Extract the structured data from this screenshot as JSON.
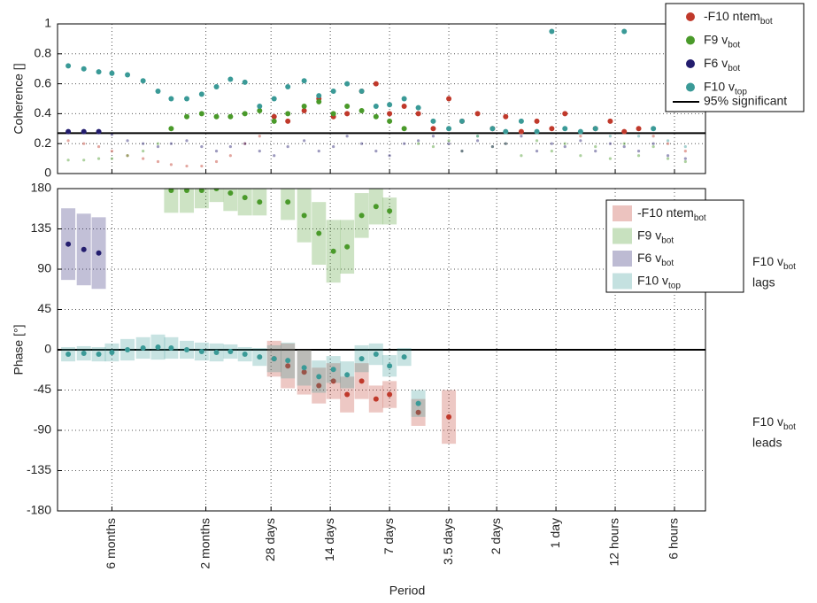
{
  "chart_data": [
    {
      "type": "scatter",
      "ylabel": "Coherence []",
      "xlog": true,
      "xlim": [
        340,
        0.174
      ],
      "ylim": [
        0,
        1
      ],
      "xticks": [
        180,
        60,
        28,
        14,
        7,
        3.5,
        2,
        1,
        0.5,
        0.25
      ],
      "yticks": [
        0,
        0.2,
        0.4,
        0.6,
        0.8,
        1
      ],
      "grid": true,
      "threshold": {
        "value": 0.27,
        "label": "95% significant"
      },
      "x": [
        300,
        250,
        210,
        180,
        150,
        125,
        105,
        90,
        75,
        63,
        53,
        45,
        38,
        32,
        27,
        23,
        19,
        16,
        13.5,
        11.5,
        9.7,
        8.2,
        7,
        5.9,
        5,
        4.2,
        3.5,
        3,
        2.5,
        2.1,
        1.8,
        1.5,
        1.25,
        1.05,
        0.9,
        0.75,
        0.63,
        0.53,
        0.45,
        0.38,
        0.32,
        0.27,
        0.22
      ],
      "series": [
        {
          "name": "-F10 ntem",
          "name_sub": "bot",
          "color": "#c0392b",
          "values": [
            0.22,
            0.2,
            0.18,
            0.15,
            0.12,
            0.1,
            0.08,
            0.06,
            0.05,
            0.05,
            0.08,
            0.12,
            0.2,
            0.25,
            0.38,
            0.35,
            0.42,
            0.5,
            0.38,
            0.4,
            0.55,
            0.6,
            0.4,
            0.45,
            0.4,
            0.3,
            0.5,
            0.35,
            0.4,
            0.3,
            0.38,
            0.28,
            0.35,
            0.3,
            0.4,
            0.25,
            0.3,
            0.35,
            0.28,
            0.3,
            0.25,
            0.2,
            0.15
          ]
        },
        {
          "name": "F9 v",
          "name_sub": "bot",
          "color": "#4a9a2a",
          "values": [
            0.09,
            0.09,
            0.1,
            0.1,
            0.12,
            0.15,
            0.2,
            0.3,
            0.38,
            0.4,
            0.38,
            0.38,
            0.4,
            0.42,
            0.35,
            0.4,
            0.45,
            0.48,
            0.4,
            0.45,
            0.42,
            0.38,
            0.35,
            0.3,
            0.2,
            0.18,
            0.22,
            0.15,
            0.25,
            0.18,
            0.2,
            0.12,
            0.22,
            0.15,
            0.2,
            0.12,
            0.18,
            0.1,
            0.2,
            0.12,
            0.18,
            0.1,
            0.08
          ]
        },
        {
          "name": "F6 v",
          "name_sub": "bot",
          "color": "#231d6e",
          "values": [
            0.28,
            0.28,
            0.28,
            0.26,
            0.22,
            0.2,
            0.18,
            0.2,
            0.22,
            0.18,
            0.15,
            0.18,
            0.2,
            0.15,
            0.12,
            0.18,
            0.22,
            0.15,
            0.18,
            0.25,
            0.2,
            0.15,
            0.12,
            0.2,
            0.22,
            0.25,
            0.2,
            0.15,
            0.22,
            0.18,
            0.2,
            0.25,
            0.15,
            0.2,
            0.18,
            0.22,
            0.15,
            0.2,
            0.18,
            0.15,
            0.2,
            0.12,
            0.1
          ]
        },
        {
          "name": "F10 v",
          "name_sub": "top",
          "color": "#3a9a97",
          "values": [
            0.72,
            0.7,
            0.68,
            0.67,
            0.66,
            0.62,
            0.55,
            0.5,
            0.5,
            0.53,
            0.58,
            0.63,
            0.61,
            0.45,
            0.5,
            0.58,
            0.62,
            0.52,
            0.55,
            0.6,
            0.55,
            0.45,
            0.46,
            0.5,
            0.44,
            0.35,
            0.3,
            0.35,
            0.25,
            0.3,
            0.28,
            0.35,
            0.28,
            0.95,
            0.3,
            0.28,
            0.3,
            0.25,
            0.95,
            0.25,
            0.3,
            0.22,
            0.18
          ]
        }
      ]
    },
    {
      "type": "scatter",
      "ylabel": "Phase [°]",
      "xlabel": "Period",
      "xlog": true,
      "xlim": [
        340,
        0.174
      ],
      "ylim": [
        -180,
        180
      ],
      "xticks": [
        {
          "value": 180,
          "label": "6 months"
        },
        {
          "value": 60,
          "label": "2 months"
        },
        {
          "value": 28,
          "label": "28 days"
        },
        {
          "value": 14,
          "label": "14 days"
        },
        {
          "value": 7,
          "label": "7 days"
        },
        {
          "value": 3.5,
          "label": "3.5 days"
        },
        {
          "value": 2,
          "label": "2 days"
        },
        {
          "value": 1,
          "label": "1 day"
        },
        {
          "value": 0.5,
          "label": "12 hours"
        },
        {
          "value": 0.25,
          "label": "6 hours"
        }
      ],
      "yticks": [
        -180,
        -135,
        -90,
        -45,
        0,
        45,
        90,
        135,
        180
      ],
      "grid": true,
      "reference_line": 0,
      "annotations": [
        {
          "text": "F10 v",
          "sub": "bot",
          "line2": "lags"
        },
        {
          "text": "F10 v",
          "sub": "bot",
          "line2": "leads"
        }
      ],
      "x": [
        300,
        250,
        210,
        180,
        150,
        125,
        105,
        90,
        75,
        63,
        53,
        45,
        38,
        32,
        27,
        23,
        19,
        16,
        13.5,
        11.5,
        9.7,
        8.2,
        7,
        5.9,
        5,
        4.2,
        3.5,
        3,
        2.5,
        2.1,
        1.8,
        1.5,
        1.25,
        1.05,
        0.9,
        0.75,
        0.63,
        0.53,
        0.45,
        0.38,
        0.32,
        0.27,
        0.22
      ],
      "series": [
        {
          "name": "-F10 ntem",
          "name_sub": "bot",
          "color": "#c0392b",
          "values": [
            null,
            null,
            null,
            null,
            null,
            null,
            null,
            null,
            null,
            null,
            null,
            null,
            null,
            null,
            -10,
            -18,
            -25,
            -40,
            -35,
            -50,
            -35,
            -55,
            -50,
            null,
            -70,
            null,
            -75,
            null,
            null,
            null,
            null,
            null,
            null,
            null,
            null,
            null,
            null,
            null,
            null,
            null,
            null,
            null,
            null
          ],
          "errors": [
            null,
            null,
            null,
            null,
            null,
            null,
            null,
            null,
            null,
            null,
            null,
            null,
            null,
            null,
            20,
            25,
            25,
            20,
            20,
            20,
            20,
            15,
            15,
            null,
            15,
            null,
            30,
            null,
            null,
            null,
            null,
            null,
            null,
            null,
            null,
            null,
            null,
            null,
            null,
            null,
            null,
            null,
            null
          ]
        },
        {
          "name": "F9 v",
          "name_sub": "bot",
          "color": "#4a9a2a",
          "values": [
            null,
            null,
            null,
            null,
            null,
            null,
            null,
            178,
            178,
            178,
            180,
            175,
            170,
            165,
            null,
            165,
            150,
            130,
            110,
            115,
            150,
            160,
            155,
            null,
            null,
            null,
            null,
            null,
            null,
            null,
            null,
            null,
            null,
            null,
            null,
            null,
            null,
            null,
            null,
            null,
            null,
            null,
            null
          ],
          "errors": [
            null,
            null,
            null,
            null,
            null,
            null,
            null,
            25,
            25,
            20,
            15,
            20,
            20,
            15,
            null,
            20,
            30,
            35,
            35,
            30,
            25,
            20,
            15,
            null,
            null,
            null,
            null,
            null,
            null,
            null,
            null,
            null,
            null,
            null,
            null,
            null,
            null,
            null,
            null,
            null,
            null,
            null,
            null
          ]
        },
        {
          "name": "F6 v",
          "name_sub": "bot",
          "color": "#231d6e",
          "values": [
            118,
            112,
            108,
            null,
            null,
            null,
            null,
            null,
            null,
            null,
            null,
            null,
            null,
            null,
            null,
            null,
            null,
            null,
            null,
            null,
            null,
            null,
            null,
            null,
            null,
            null,
            null,
            null,
            null,
            null,
            null,
            null,
            null,
            null,
            null,
            null,
            null,
            null,
            null,
            null,
            null,
            null,
            null
          ],
          "errors": [
            40,
            40,
            40,
            null,
            null,
            null,
            null,
            null,
            null,
            null,
            null,
            null,
            null,
            null,
            null,
            null,
            null,
            null,
            null,
            null,
            null,
            null,
            null,
            null,
            null,
            null,
            null,
            null,
            null,
            null,
            null,
            null,
            null,
            null,
            null,
            null,
            null,
            null,
            null,
            null,
            null,
            null,
            null
          ]
        },
        {
          "name": "F10 v",
          "name_sub": "top",
          "color": "#3a9a97",
          "values": [
            -5,
            -4,
            -5,
            -3,
            0,
            2,
            3,
            2,
            0,
            -2,
            -3,
            -2,
            -5,
            -8,
            -10,
            -12,
            -20,
            -30,
            -22,
            -28,
            -10,
            -5,
            -18,
            -8,
            -60,
            null,
            null,
            null,
            null,
            null,
            null,
            null,
            null,
            null,
            null,
            null,
            null,
            null,
            null,
            null,
            null,
            null,
            null
          ],
          "errors": [
            8,
            8,
            8,
            10,
            12,
            12,
            14,
            12,
            10,
            10,
            10,
            8,
            8,
            10,
            15,
            20,
            20,
            18,
            15,
            15,
            15,
            12,
            12,
            10,
            15,
            null,
            null,
            null,
            null,
            null,
            null,
            null,
            null,
            null,
            null,
            null,
            null,
            null,
            null,
            null,
            null,
            null,
            null
          ]
        }
      ]
    }
  ]
}
